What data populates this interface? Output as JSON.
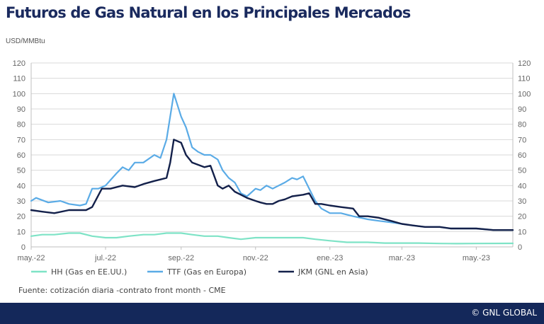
{
  "chart_data": {
    "type": "line",
    "title": "Futuros de Gas Natural en los Principales Mercados",
    "ylabel": "USD/MMBtu",
    "ylim": [
      0,
      120
    ],
    "yticks": [
      "0",
      "10",
      "20",
      "30",
      "40",
      "50",
      "60",
      "70",
      "80",
      "90",
      "100",
      "110",
      "120"
    ],
    "secondary_yticks": [
      "0",
      "10",
      "20",
      "30",
      "40",
      "50",
      "60",
      "70",
      "80",
      "90",
      "100",
      "110",
      "120"
    ],
    "xlim": [
      "2022-05-01",
      "2023-05-31"
    ],
    "xticks": [
      {
        "date": "2022-05-01",
        "label": "may.-22"
      },
      {
        "date": "2022-07-01",
        "label": "jul.-22"
      },
      {
        "date": "2022-09-01",
        "label": "sep.-22"
      },
      {
        "date": "2022-11-01",
        "label": "nov.-22"
      },
      {
        "date": "2023-01-01",
        "label": "ene.-23"
      },
      {
        "date": "2023-03-01",
        "label": "mar.-23"
      },
      {
        "date": "2023-05-01",
        "label": "may.-23"
      }
    ],
    "grid": true,
    "legend_position": "bottom",
    "series": [
      {
        "name": "HH (Gas en EE.UU.)",
        "color": "#7ee3c6",
        "points": [
          [
            "2022-05-01",
            7
          ],
          [
            "2022-05-10",
            8
          ],
          [
            "2022-05-20",
            8
          ],
          [
            "2022-06-01",
            9
          ],
          [
            "2022-06-10",
            9
          ],
          [
            "2022-06-20",
            7
          ],
          [
            "2022-07-01",
            6
          ],
          [
            "2022-07-10",
            6
          ],
          [
            "2022-07-20",
            7
          ],
          [
            "2022-08-01",
            8
          ],
          [
            "2022-08-10",
            8
          ],
          [
            "2022-08-20",
            9
          ],
          [
            "2022-09-01",
            9
          ],
          [
            "2022-09-10",
            8
          ],
          [
            "2022-09-20",
            7
          ],
          [
            "2022-10-01",
            7
          ],
          [
            "2022-10-10",
            6
          ],
          [
            "2022-10-20",
            5
          ],
          [
            "2022-11-01",
            6
          ],
          [
            "2022-11-10",
            6
          ],
          [
            "2022-11-20",
            6
          ],
          [
            "2022-12-01",
            6
          ],
          [
            "2022-12-10",
            6
          ],
          [
            "2022-12-20",
            5
          ],
          [
            "2023-01-01",
            4
          ],
          [
            "2023-01-15",
            3
          ],
          [
            "2023-02-01",
            3
          ],
          [
            "2023-02-15",
            2.5
          ],
          [
            "2023-03-01",
            2.5
          ],
          [
            "2023-03-15",
            2.5
          ],
          [
            "2023-04-01",
            2.2
          ],
          [
            "2023-04-15",
            2.1
          ],
          [
            "2023-05-01",
            2.2
          ],
          [
            "2023-05-31",
            2.3
          ]
        ]
      },
      {
        "name": "TTF (Gas en Europa)",
        "color": "#5aabe6",
        "points": [
          [
            "2022-05-01",
            30
          ],
          [
            "2022-05-05",
            32
          ],
          [
            "2022-05-15",
            29
          ],
          [
            "2022-05-25",
            30
          ],
          [
            "2022-06-01",
            28
          ],
          [
            "2022-06-10",
            27
          ],
          [
            "2022-06-15",
            28
          ],
          [
            "2022-06-20",
            38
          ],
          [
            "2022-06-25",
            38
          ],
          [
            "2022-07-01",
            40
          ],
          [
            "2022-07-10",
            48
          ],
          [
            "2022-07-15",
            52
          ],
          [
            "2022-07-20",
            50
          ],
          [
            "2022-07-25",
            55
          ],
          [
            "2022-08-01",
            55
          ],
          [
            "2022-08-10",
            60
          ],
          [
            "2022-08-15",
            58
          ],
          [
            "2022-08-20",
            70
          ],
          [
            "2022-08-26",
            100
          ],
          [
            "2022-09-01",
            85
          ],
          [
            "2022-09-05",
            78
          ],
          [
            "2022-09-10",
            65
          ],
          [
            "2022-09-15",
            62
          ],
          [
            "2022-09-20",
            60
          ],
          [
            "2022-09-25",
            60
          ],
          [
            "2022-10-01",
            57
          ],
          [
            "2022-10-05",
            50
          ],
          [
            "2022-10-10",
            45
          ],
          [
            "2022-10-15",
            42
          ],
          [
            "2022-10-20",
            35
          ],
          [
            "2022-10-25",
            33
          ],
          [
            "2022-11-01",
            38
          ],
          [
            "2022-11-05",
            37
          ],
          [
            "2022-11-10",
            40
          ],
          [
            "2022-11-15",
            38
          ],
          [
            "2022-11-20",
            40
          ],
          [
            "2022-11-25",
            42
          ],
          [
            "2022-12-01",
            45
          ],
          [
            "2022-12-05",
            44
          ],
          [
            "2022-12-10",
            46
          ],
          [
            "2022-12-15",
            38
          ],
          [
            "2022-12-20",
            30
          ],
          [
            "2022-12-25",
            25
          ],
          [
            "2023-01-01",
            22
          ],
          [
            "2023-01-10",
            22
          ],
          [
            "2023-01-20",
            20
          ],
          [
            "2023-02-01",
            18
          ],
          [
            "2023-02-10",
            17
          ],
          [
            "2023-02-20",
            16
          ],
          [
            "2023-03-01",
            15
          ],
          [
            "2023-03-10",
            14
          ],
          [
            "2023-03-20",
            13
          ],
          [
            "2023-04-01",
            13
          ],
          [
            "2023-04-10",
            12
          ],
          [
            "2023-04-20",
            12
          ],
          [
            "2023-05-01",
            12
          ],
          [
            "2023-05-15",
            11
          ],
          [
            "2023-05-31",
            11
          ]
        ]
      },
      {
        "name": "JKM (GNL en Asia)",
        "color": "#13204a",
        "points": [
          [
            "2022-05-01",
            24
          ],
          [
            "2022-05-10",
            23
          ],
          [
            "2022-05-20",
            22
          ],
          [
            "2022-06-01",
            24
          ],
          [
            "2022-06-15",
            24
          ],
          [
            "2022-06-20",
            26
          ],
          [
            "2022-06-28",
            38
          ],
          [
            "2022-07-05",
            38
          ],
          [
            "2022-07-15",
            40
          ],
          [
            "2022-07-25",
            39
          ],
          [
            "2022-08-01",
            41
          ],
          [
            "2022-08-10",
            43
          ],
          [
            "2022-08-15",
            44
          ],
          [
            "2022-08-20",
            45
          ],
          [
            "2022-08-23",
            55
          ],
          [
            "2022-08-26",
            70
          ],
          [
            "2022-09-01",
            68
          ],
          [
            "2022-09-05",
            60
          ],
          [
            "2022-09-10",
            55
          ],
          [
            "2022-09-20",
            52
          ],
          [
            "2022-09-25",
            53
          ],
          [
            "2022-10-01",
            40
          ],
          [
            "2022-10-05",
            38
          ],
          [
            "2022-10-10",
            40
          ],
          [
            "2022-10-15",
            36
          ],
          [
            "2022-10-20",
            34
          ],
          [
            "2022-10-25",
            32
          ],
          [
            "2022-11-01",
            30
          ],
          [
            "2022-11-05",
            29
          ],
          [
            "2022-11-10",
            28
          ],
          [
            "2022-11-15",
            28
          ],
          [
            "2022-11-20",
            30
          ],
          [
            "2022-11-25",
            31
          ],
          [
            "2022-12-01",
            33
          ],
          [
            "2022-12-10",
            34
          ],
          [
            "2022-12-15",
            35
          ],
          [
            "2022-12-20",
            28
          ],
          [
            "2022-12-25",
            28
          ],
          [
            "2023-01-01",
            27
          ],
          [
            "2023-01-10",
            26
          ],
          [
            "2023-01-20",
            25
          ],
          [
            "2023-01-25",
            20
          ],
          [
            "2023-02-01",
            20
          ],
          [
            "2023-02-10",
            19
          ],
          [
            "2023-02-20",
            17
          ],
          [
            "2023-03-01",
            15
          ],
          [
            "2023-03-10",
            14
          ],
          [
            "2023-03-20",
            13
          ],
          [
            "2023-04-01",
            13
          ],
          [
            "2023-04-10",
            12
          ],
          [
            "2023-04-20",
            12
          ],
          [
            "2023-05-01",
            12
          ],
          [
            "2023-05-15",
            11
          ],
          [
            "2023-05-31",
            11
          ]
        ]
      }
    ],
    "source": "Fuente: cotización diaria -contrato front month - CME"
  },
  "footer": {
    "brand": "© GNL GLOBAL"
  }
}
